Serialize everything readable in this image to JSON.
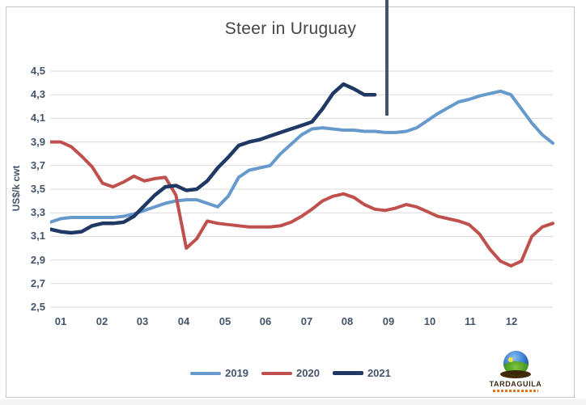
{
  "window": {
    "background": "#FFFFFF",
    "frame_border_color": "#C6C6C6"
  },
  "chart": {
    "title": "Steer in Uruguay",
    "y_axis_title": "US$/k cwt"
  },
  "chart_data": {
    "type": "line",
    "title": "Steer in Uruguay",
    "xlabel": "",
    "ylabel": "US$/k cwt",
    "ylim": [
      2.5,
      4.5
    ],
    "ytick_step": 0.2,
    "ytick_labels": [
      "4,5",
      "4,3",
      "4,1",
      "3,9",
      "3,7",
      "3,5",
      "3,3",
      "3,1",
      "2,9",
      "2,7",
      "2,5"
    ],
    "xtick_labels": [
      "01",
      "02",
      "03",
      "04",
      "05",
      "06",
      "07",
      "08",
      "09",
      "10",
      "11",
      "12"
    ],
    "x_resolution": "weekly points, 4 per month",
    "grid": true,
    "legend_position": "bottom-center",
    "series": [
      {
        "name": "2019",
        "color": "#6699CC",
        "values": [
          3.22,
          3.25,
          3.26,
          3.26,
          3.26,
          3.26,
          3.26,
          3.27,
          3.29,
          3.32,
          3.35,
          3.38,
          3.4,
          3.41,
          3.41,
          3.38,
          3.35,
          3.44,
          3.6,
          3.66,
          3.68,
          3.7,
          3.8,
          3.88,
          3.96,
          4.01,
          4.02,
          4.01,
          4.0,
          4.0,
          3.99,
          3.99,
          3.98,
          3.98,
          3.99,
          4.02,
          4.08,
          4.14,
          4.19,
          4.24,
          4.26,
          4.29,
          4.31,
          4.33,
          4.3,
          4.18,
          4.06,
          3.96,
          3.89
        ]
      },
      {
        "name": "2020",
        "color": "#C0504D",
        "values": [
          3.9,
          3.9,
          3.86,
          3.78,
          3.69,
          3.55,
          3.52,
          3.56,
          3.61,
          3.57,
          3.59,
          3.6,
          3.45,
          3.0,
          3.08,
          3.23,
          3.21,
          3.2,
          3.19,
          3.18,
          3.18,
          3.18,
          3.19,
          3.22,
          3.27,
          3.33,
          3.4,
          3.44,
          3.46,
          3.43,
          3.37,
          3.33,
          3.32,
          3.34,
          3.37,
          3.35,
          3.31,
          3.27,
          3.25,
          3.23,
          3.2,
          3.12,
          2.99,
          2.89,
          2.85,
          2.89,
          3.1,
          3.18,
          3.21
        ]
      },
      {
        "name": "2021",
        "color": "#1F3864",
        "values": [
          3.16,
          3.14,
          3.13,
          3.14,
          3.19,
          3.21,
          3.21,
          3.22,
          3.27,
          3.36,
          3.45,
          3.52,
          3.53,
          3.49,
          3.5,
          3.57,
          3.68,
          3.77,
          3.87,
          3.9,
          3.92,
          3.95,
          3.98,
          4.01,
          4.04,
          4.07,
          4.18,
          4.31,
          4.39,
          4.35,
          4.3,
          4.3
        ]
      }
    ]
  },
  "annotation_line": {
    "color": "#44546A"
  },
  "legend": {
    "items": [
      "2019",
      "2020",
      "2021"
    ]
  },
  "logo": {
    "text": "TARDAGUILA",
    "text_color": "#3B2A14",
    "subtext_color": "#E0771D",
    "sky_color": "#2E6FC2",
    "hill_color": "#3F8F1D",
    "sun_color": "#F8E23C",
    "base_color": "#42290A"
  },
  "colors": {
    "axis_text": "#44546A",
    "title_text": "#454545",
    "gridline": "#D9D9D9",
    "legend_text": "#44546A"
  }
}
